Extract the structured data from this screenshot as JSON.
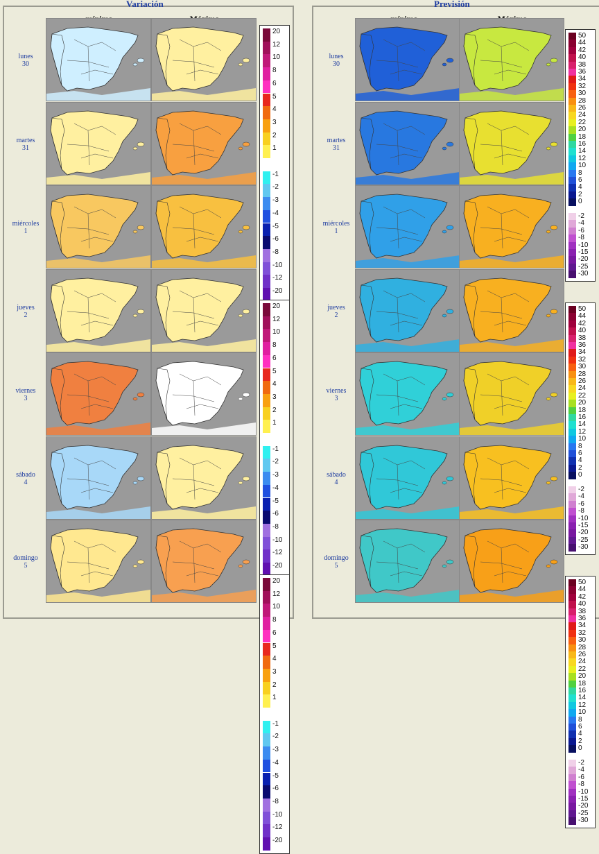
{
  "left_panel": {
    "title": "Variación",
    "col_min": "mínima",
    "col_max": "Máxima"
  },
  "right_panel": {
    "title": "Previsión",
    "col_min": "mínima",
    "col_max": "Máxima"
  },
  "days": [
    {
      "name": "lunes",
      "num": "30"
    },
    {
      "name": "martes",
      "num": "31"
    },
    {
      "name": "miércoles",
      "num": "1"
    },
    {
      "name": "jueves",
      "num": "2"
    },
    {
      "name": "viernes",
      "num": "3"
    },
    {
      "name": "sábado",
      "num": "4"
    },
    {
      "name": "domingo",
      "num": "5"
    }
  ],
  "variation_legend": [
    {
      "v": "20",
      "c": "#7a0a3a"
    },
    {
      "v": "12",
      "c": "#a0105a"
    },
    {
      "v": "10",
      "c": "#c01878"
    },
    {
      "v": "8",
      "c": "#e020a0"
    },
    {
      "v": "6",
      "c": "#ff30c0"
    },
    {
      "v": "5",
      "c": "#e8281e"
    },
    {
      "v": "4",
      "c": "#f06a10"
    },
    {
      "v": "3",
      "c": "#f8a010"
    },
    {
      "v": "2",
      "c": "#f8d020"
    },
    {
      "v": "1",
      "c": "#fff050"
    },
    {
      "v": "",
      "c": "#ffffff"
    },
    {
      "v": "-1",
      "c": "#30f0f0"
    },
    {
      "v": "-2",
      "c": "#60c8f0"
    },
    {
      "v": "-3",
      "c": "#3c8cf0"
    },
    {
      "v": "-4",
      "c": "#2050e0"
    },
    {
      "v": "-5",
      "c": "#0a20b0"
    },
    {
      "v": "-6",
      "c": "#0a0a70"
    },
    {
      "v": "-8",
      "c": "#a070e0"
    },
    {
      "v": "-10",
      "c": "#8050d8"
    },
    {
      "v": "-12",
      "c": "#7030c8"
    },
    {
      "v": "-20",
      "c": "#6010b0"
    }
  ],
  "forecast_legend": [
    {
      "v": "50",
      "c": "#6a0020"
    },
    {
      "v": "44",
      "c": "#8a0030"
    },
    {
      "v": "42",
      "c": "#a0003c"
    },
    {
      "v": "40",
      "c": "#c0104c"
    },
    {
      "v": "38",
      "c": "#d8206c"
    },
    {
      "v": "36",
      "c": "#f030a0"
    },
    {
      "v": "34",
      "c": "#e01818"
    },
    {
      "v": "32",
      "c": "#f03010"
    },
    {
      "v": "30",
      "c": "#f86010"
    },
    {
      "v": "28",
      "c": "#f89010"
    },
    {
      "v": "26",
      "c": "#f8b818"
    },
    {
      "v": "24",
      "c": "#f8d820"
    },
    {
      "v": "22",
      "c": "#e8f020"
    },
    {
      "v": "20",
      "c": "#a8e020"
    },
    {
      "v": "18",
      "c": "#50d040"
    },
    {
      "v": "16",
      "c": "#30d8a0"
    },
    {
      "v": "14",
      "c": "#20e0d0"
    },
    {
      "v": "12",
      "c": "#10c8e0"
    },
    {
      "v": "10",
      "c": "#10a8f0"
    },
    {
      "v": "8",
      "c": "#2878f0"
    },
    {
      "v": "6",
      "c": "#2050d8"
    },
    {
      "v": "4",
      "c": "#1030b0"
    },
    {
      "v": "2",
      "c": "#0a1890"
    },
    {
      "v": "0",
      "c": "#081060"
    },
    {
      "v": "",
      "c": "#ffffff"
    },
    {
      "v": "-2",
      "c": "#f0d0e8"
    },
    {
      "v": "-4",
      "c": "#e0a8d8"
    },
    {
      "v": "-6",
      "c": "#d080d0"
    },
    {
      "v": "-8",
      "c": "#c050d0"
    },
    {
      "v": "-10",
      "c": "#a030c0"
    },
    {
      "v": "-15",
      "c": "#8a20b0"
    },
    {
      "v": "-20",
      "c": "#7818a0"
    },
    {
      "v": "-25",
      "c": "#601890"
    },
    {
      "v": "-30",
      "c": "#481070"
    }
  ],
  "map_fills": {
    "var_min": [
      "#cfefff",
      "#fff0a0",
      "#f8c860",
      "#fff0a0",
      "#f08040",
      "#a8d8f8",
      "#ffe890"
    ],
    "var_max": [
      "#fff0a0",
      "#f8a040",
      "#f8c040",
      "#fff0a0",
      "#ffffff",
      "#fff0a0",
      "#f8a050"
    ],
    "pre_min": [
      "#2060d8",
      "#2878e0",
      "#30a0e8",
      "#30b0e0",
      "#30d0d8",
      "#30c8d8",
      "#40c8c8"
    ],
    "pre_max": [
      "#c8e840",
      "#e8e030",
      "#f8b020",
      "#f8b020",
      "#f0d028",
      "#f8c020",
      "#f8a018"
    ]
  }
}
